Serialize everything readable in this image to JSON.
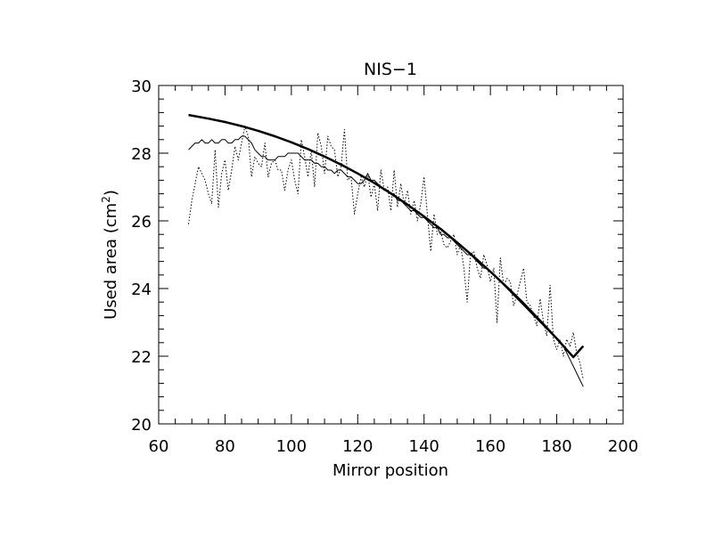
{
  "chart_data": {
    "type": "line",
    "title": "NIS−1",
    "xlabel": "Mirror position",
    "ylabel": "Used area (cm",
    "ylabel_superscript": "2",
    "ylabel_suffix": ")",
    "xlim": [
      60,
      200
    ],
    "ylim": [
      20,
      30
    ],
    "x_ticks": [
      60,
      80,
      100,
      120,
      140,
      160,
      180,
      200
    ],
    "y_ticks": [
      20,
      22,
      24,
      26,
      28,
      30
    ],
    "grid": false,
    "series": [
      {
        "style": "dotted",
        "x": [
          69,
          70,
          71,
          72,
          73,
          74,
          75,
          76,
          77,
          78,
          79,
          80,
          81,
          82,
          83,
          84,
          85,
          86,
          87,
          88,
          89,
          90,
          91,
          92,
          93,
          94,
          95,
          96,
          97,
          98,
          99,
          100,
          101,
          102,
          103,
          104,
          105,
          106,
          107,
          108,
          109,
          110,
          111,
          112,
          113,
          114,
          115,
          116,
          117,
          118,
          119,
          120,
          121,
          122,
          123,
          124,
          125,
          126,
          127,
          128,
          129,
          130,
          131,
          132,
          133,
          134,
          135,
          136,
          137,
          138,
          139,
          140,
          141,
          142,
          143,
          144,
          145,
          146,
          147,
          148,
          149,
          150,
          151,
          152,
          153,
          154,
          155,
          156,
          157,
          158,
          159,
          160,
          161,
          162,
          163,
          164,
          165,
          166,
          167,
          168,
          169,
          170,
          171,
          172,
          173,
          174,
          175,
          176,
          177,
          178,
          179,
          180,
          181,
          182,
          183,
          184,
          185,
          186,
          187,
          188
        ],
        "y": [
          25.9,
          26.6,
          27.1,
          27.6,
          27.4,
          27.2,
          26.8,
          26.5,
          28.1,
          26.4,
          27.4,
          27.8,
          26.9,
          27.5,
          28.2,
          27.8,
          28.3,
          28.8,
          28.5,
          27.3,
          27.9,
          27.7,
          27.6,
          28.3,
          27.3,
          27.7,
          27.8,
          27.5,
          27.5,
          26.9,
          27.5,
          27.8,
          27.2,
          26.8,
          28.4,
          27.9,
          27.3,
          28.1,
          27.0,
          28.6,
          28.2,
          27.4,
          28.5,
          28.2,
          28.1,
          27.3,
          27.6,
          28.7,
          27.2,
          27.3,
          26.2,
          26.8,
          27.3,
          27.0,
          27.4,
          26.7,
          27.1,
          26.3,
          27.5,
          26.9,
          27.0,
          26.3,
          27.5,
          26.4,
          27.1,
          26.5,
          26.9,
          26.2,
          26.6,
          26.0,
          26.5,
          27.3,
          26.2,
          25.1,
          26.2,
          25.6,
          25.7,
          25.3,
          25.2,
          25.4,
          25.6,
          25.0,
          25.3,
          24.6,
          23.6,
          25.0,
          25.1,
          24.6,
          24.3,
          25.0,
          24.7,
          24.2,
          24.6,
          23.0,
          24.9,
          24.1,
          24.3,
          24.2,
          23.5,
          23.8,
          24.2,
          24.6,
          23.6,
          23.5,
          23.2,
          22.9,
          23.7,
          23.0,
          22.6,
          24.1,
          22.5,
          22.2,
          22.5,
          22.0,
          22.5,
          22.3,
          22.7,
          22.1,
          21.8,
          21.3
        ]
      },
      {
        "style": "thin",
        "x": [
          69,
          70,
          71,
          72,
          73,
          74,
          75,
          76,
          77,
          78,
          79,
          80,
          81,
          82,
          83,
          84,
          85,
          86,
          87,
          88,
          89,
          90,
          91,
          92,
          93,
          94,
          95,
          96,
          97,
          98,
          99,
          100,
          101,
          102,
          103,
          104,
          105,
          106,
          107,
          108,
          109,
          110,
          111,
          112,
          113,
          114,
          115,
          116,
          117,
          118,
          119,
          120,
          121,
          122,
          123,
          124,
          125,
          126,
          127,
          128,
          129,
          130,
          131,
          132,
          133,
          134,
          135,
          136,
          137,
          138,
          139,
          140,
          141,
          142,
          143,
          144,
          145,
          146,
          147,
          148,
          149,
          150,
          151,
          152,
          153,
          154,
          155,
          156,
          157,
          158,
          159,
          160,
          161,
          162,
          163,
          164,
          165,
          166,
          167,
          168,
          169,
          170,
          171,
          172,
          173,
          174,
          175,
          176,
          177,
          178,
          179,
          180,
          181,
          182,
          183,
          184,
          185,
          186,
          187,
          188
        ],
        "y": [
          28.1,
          28.2,
          28.3,
          28.3,
          28.4,
          28.3,
          28.3,
          28.4,
          28.3,
          28.3,
          28.4,
          28.4,
          28.3,
          28.3,
          28.4,
          28.4,
          28.5,
          28.5,
          28.4,
          28.3,
          28.1,
          28.0,
          27.9,
          27.9,
          27.8,
          27.8,
          27.8,
          27.9,
          27.9,
          27.9,
          28.0,
          28.0,
          28.0,
          28.0,
          27.9,
          27.8,
          27.8,
          27.8,
          27.7,
          27.7,
          27.6,
          27.6,
          27.5,
          27.5,
          27.4,
          27.5,
          27.5,
          27.4,
          27.3,
          27.3,
          27.2,
          27.1,
          27.1,
          27.2,
          27.4,
          27.2,
          27.2,
          27.1,
          27.0,
          26.9,
          26.9,
          26.8,
          26.8,
          26.6,
          26.6,
          26.5,
          26.4,
          26.3,
          26.3,
          26.2,
          26.1,
          26.1,
          26.0,
          25.9,
          25.8,
          25.8,
          25.6,
          25.6,
          25.5,
          25.5,
          25.4,
          25.3,
          25.2,
          25.1,
          25.0,
          25.0,
          24.9,
          24.8,
          24.7,
          24.6,
          24.6,
          24.5,
          24.4,
          24.3,
          24.2,
          24.1,
          24.0,
          23.9,
          23.8,
          23.7,
          23.6,
          23.5,
          23.4,
          23.3,
          23.2,
          23.1,
          23.0,
          22.9,
          22.8,
          22.7,
          22.6,
          22.5,
          22.4,
          22.3,
          22.1,
          21.9,
          21.7,
          21.5,
          21.3,
          21.1
        ]
      },
      {
        "style": "thick",
        "x": [
          69,
          75,
          80,
          85,
          90,
          95,
          100,
          105,
          110,
          115,
          120,
          125,
          130,
          135,
          140,
          145,
          150,
          155,
          160,
          165,
          170,
          175,
          180,
          185,
          188
        ],
        "y": [
          29.13,
          29.02,
          28.92,
          28.8,
          28.66,
          28.5,
          28.32,
          28.12,
          27.9,
          27.66,
          27.4,
          27.12,
          26.81,
          26.48,
          26.13,
          25.76,
          25.36,
          24.94,
          24.5,
          24.04,
          23.56,
          23.05,
          22.52,
          21.97,
          22.3
        ]
      }
    ]
  }
}
